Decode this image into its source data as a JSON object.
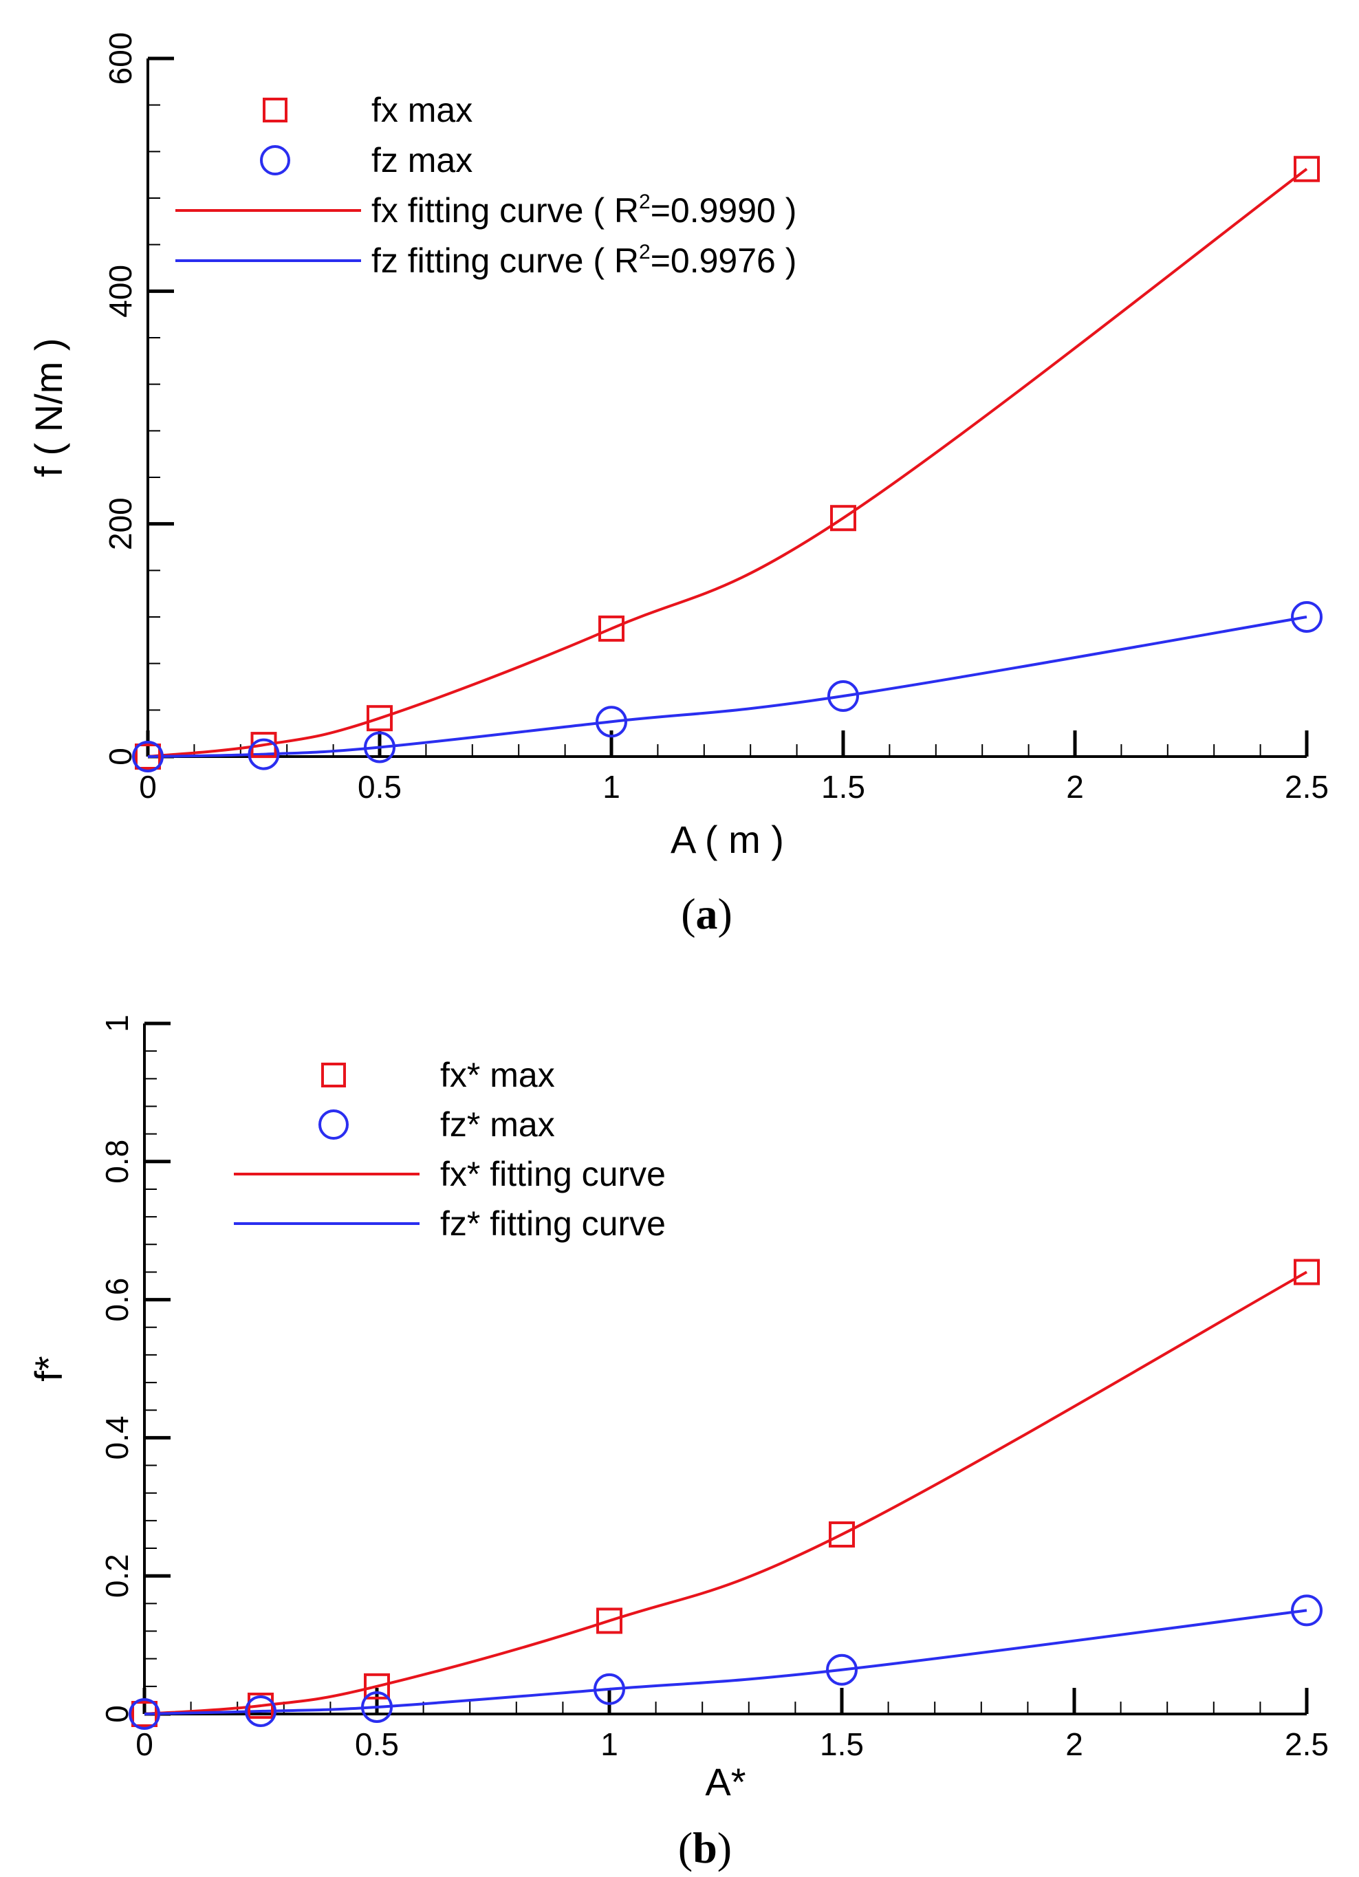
{
  "colors": {
    "fx": "#e8141c",
    "fz": "#2a2ef0",
    "axis": "#000000"
  },
  "chart_data": [
    {
      "type": "scatter",
      "panel": "a",
      "caption": {
        "open": "(",
        "letter": "a",
        "close": ")"
      },
      "xlabel": "A ( m )",
      "ylabel": "f ( N/m )",
      "xlim": [
        0,
        2.5
      ],
      "ylim": [
        0,
        600
      ],
      "xticks": [
        0,
        0.5,
        1,
        1.5,
        2,
        2.5
      ],
      "xtick_labels": [
        "0",
        "0.5",
        "1",
        "1.5",
        "2",
        "2.5"
      ],
      "yticks": [
        0,
        200,
        400,
        600
      ],
      "ytick_labels": [
        "0",
        "200",
        "400",
        "600"
      ],
      "x": [
        0,
        0.25,
        0.5,
        1,
        1.5,
        2.5
      ],
      "series": [
        {
          "name": "fx max",
          "kind": "markers",
          "marker": "square",
          "color_key": "fx",
          "values": [
            0,
            10,
            33,
            110,
            205,
            505
          ]
        },
        {
          "name": "fz max",
          "kind": "markers",
          "marker": "circle",
          "color_key": "fz",
          "values": [
            0,
            2,
            8,
            30,
            52,
            120
          ]
        },
        {
          "name": "fx fitting curve",
          "kind": "line",
          "color_key": "fx",
          "r2_label": "R",
          "r2_sup": "2",
          "r2_value": "=0.9990",
          "legend_tail": " )",
          "legend_prefix": "fx fitting curve ( ",
          "values": [
            0,
            10,
            33,
            110,
            205,
            505
          ]
        },
        {
          "name": "fz fitting curve",
          "kind": "line",
          "color_key": "fz",
          "r2_label": "R",
          "r2_sup": "2",
          "r2_value": "=0.9976",
          "legend_tail": " )",
          "legend_prefix": "fz fitting curve ( ",
          "values": [
            0,
            2,
            8,
            30,
            52,
            120
          ]
        }
      ]
    },
    {
      "type": "scatter",
      "panel": "b",
      "caption": {
        "open": "(",
        "letter": "b",
        "close": ")"
      },
      "xlabel": "A*",
      "ylabel": "f*",
      "xlim": [
        0,
        2.5
      ],
      "ylim": [
        0,
        1
      ],
      "xticks": [
        0,
        0.5,
        1,
        1.5,
        2,
        2.5
      ],
      "xtick_labels": [
        "0",
        "0.5",
        "1",
        "1.5",
        "2",
        "2.5"
      ],
      "yticks": [
        0,
        0.2,
        0.4,
        0.6,
        0.8,
        1
      ],
      "ytick_labels": [
        "0",
        "0.2",
        "0.4",
        "0.6",
        "0.8",
        "1"
      ],
      "x": [
        0,
        0.25,
        0.5,
        1,
        1.5,
        2.5
      ],
      "series": [
        {
          "name": "fx* max",
          "kind": "markers",
          "marker": "square",
          "color_key": "fx",
          "values": [
            0,
            0.012,
            0.04,
            0.135,
            0.26,
            0.64
          ]
        },
        {
          "name": "fz* max",
          "kind": "markers",
          "marker": "circle",
          "color_key": "fz",
          "values": [
            0,
            0.004,
            0.01,
            0.036,
            0.064,
            0.15
          ]
        },
        {
          "name": "fx* fitting curve",
          "kind": "line",
          "color_key": "fx",
          "legend_prefix": "fx* fitting curve",
          "values": [
            0,
            0.012,
            0.04,
            0.135,
            0.26,
            0.64
          ]
        },
        {
          "name": "fz* fitting curve",
          "kind": "line",
          "color_key": "fz",
          "legend_prefix": "fz* fitting curve",
          "values": [
            0,
            0.004,
            0.01,
            0.036,
            0.064,
            0.15
          ]
        }
      ]
    }
  ]
}
